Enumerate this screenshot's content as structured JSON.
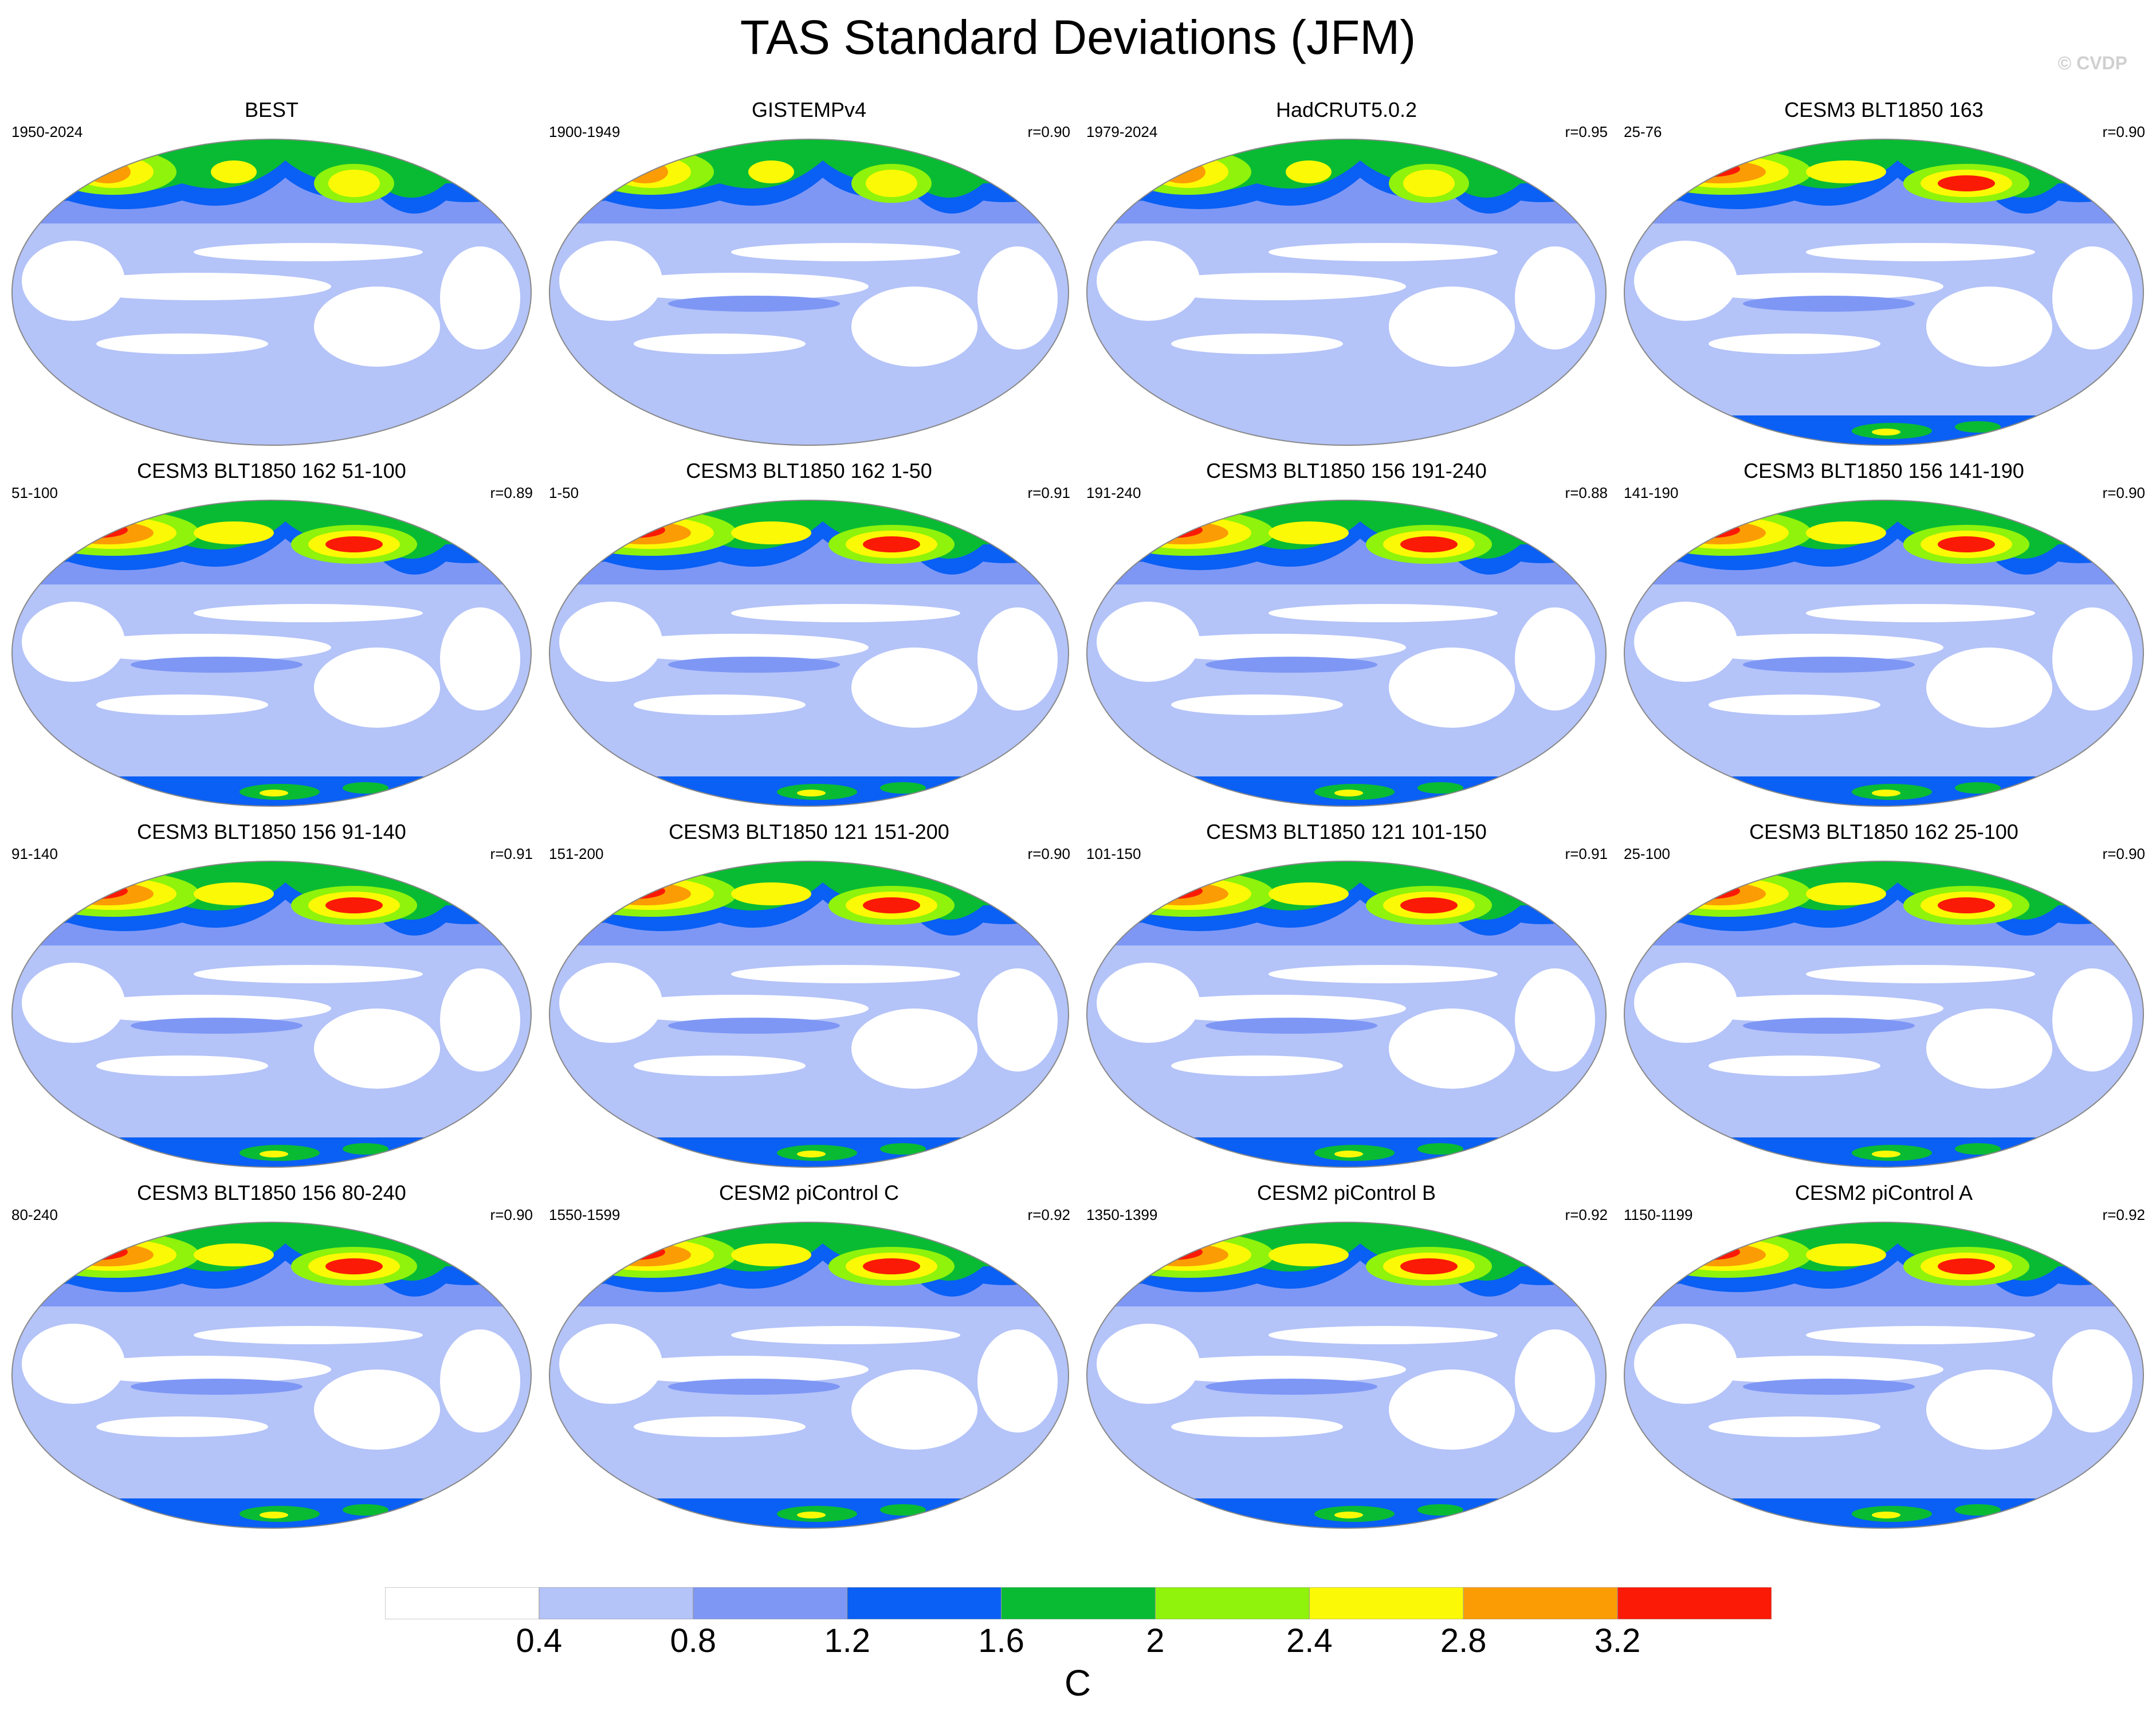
{
  "title": "TAS Standard Deviations (JFM)",
  "watermark": "© CVDP",
  "panels": [
    {
      "title": "BEST",
      "period": "1950-2024",
      "r": ""
    },
    {
      "title": "GISTEMPv4",
      "period": "1900-1949",
      "r": "r=0.90"
    },
    {
      "title": "HadCRUT5.0.2",
      "period": "1979-2024",
      "r": "r=0.95"
    },
    {
      "title": "CESM3 BLT1850 163",
      "period": "25-76",
      "r": "r=0.90"
    },
    {
      "title": "CESM3 BLT1850 162 51-100",
      "period": "51-100",
      "r": "r=0.89"
    },
    {
      "title": "CESM3 BLT1850 162 1-50",
      "period": "1-50",
      "r": "r=0.91"
    },
    {
      "title": "CESM3 BLT1850 156 191-240",
      "period": "191-240",
      "r": "r=0.88"
    },
    {
      "title": "CESM3 BLT1850 156 141-190",
      "period": "141-190",
      "r": "r=0.90"
    },
    {
      "title": "CESM3 BLT1850 156 91-140",
      "period": "91-140",
      "r": "r=0.91"
    },
    {
      "title": "CESM3 BLT1850 121 151-200",
      "period": "151-200",
      "r": "r=0.90"
    },
    {
      "title": "CESM3 BLT1850 121 101-150",
      "period": "101-150",
      "r": "r=0.91"
    },
    {
      "title": "CESM3 BLT1850 162 25-100",
      "period": "25-100",
      "r": "r=0.90"
    },
    {
      "title": "CESM3 BLT1850 156 80-240",
      "period": "80-240",
      "r": "r=0.90"
    },
    {
      "title": "CESM2 piControl C",
      "period": "1550-1599",
      "r": "r=0.92"
    },
    {
      "title": "CESM2 piControl B",
      "period": "1350-1399",
      "r": "r=0.92"
    },
    {
      "title": "CESM2 piControl A",
      "period": "1150-1199",
      "r": "r=0.92"
    }
  ],
  "colorbar": {
    "units": "C",
    "ticks": [
      "0.4",
      "0.8",
      "1.2",
      "1.6",
      "2",
      "2.4",
      "2.8",
      "3.2"
    ],
    "colors": [
      "#ffffff",
      "#b4c3f8",
      "#7e97f5",
      "#0a5ff4",
      "#09bb33",
      "#8ff30b",
      "#fbf905",
      "#fb9c05",
      "#fb1a05"
    ]
  }
}
